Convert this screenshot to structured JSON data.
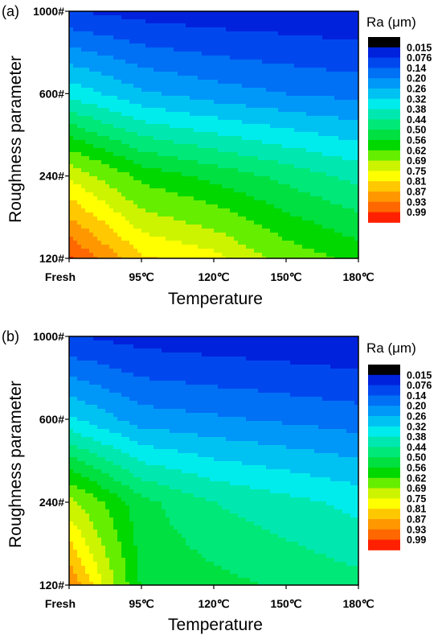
{
  "legend": {
    "title": "Ra (μm)",
    "levels": [
      "0.015",
      "0.076",
      "0.14",
      "0.20",
      "0.26",
      "0.32",
      "0.38",
      "0.44",
      "0.50",
      "0.56",
      "0.62",
      "0.69",
      "0.75",
      "0.81",
      "0.87",
      "0.93",
      "0.99"
    ],
    "colors": [
      "#000000",
      "#0022dd",
      "#0048ee",
      "#0070f5",
      "#0098f8",
      "#00c2f2",
      "#00ecec",
      "#00e8b0",
      "#00e878",
      "#00e040",
      "#00d800",
      "#66ee00",
      "#ccf400",
      "#ffff00",
      "#ffc800",
      "#ff9800",
      "#ff6800",
      "#ff2000"
    ]
  },
  "chart_data": [
    {
      "type": "heatmap",
      "panel_label": "(a)",
      "xlabel": "Temperature",
      "ylabel": "Roughness parameter",
      "x_ticks": [
        "Fresh",
        "95℃",
        "120℃",
        "150℃",
        "180℃"
      ],
      "y_ticks": [
        "120#",
        "240#",
        "600#",
        "1000#"
      ],
      "values_unit": "Ra (μm)",
      "grid": [
        [
          1.0,
          0.82,
          0.77,
          0.66,
          0.6
        ],
        [
          0.74,
          0.6,
          0.54,
          0.48,
          0.42
        ],
        [
          0.36,
          0.27,
          0.23,
          0.2,
          0.18
        ],
        [
          0.08,
          0.05,
          0.035,
          0.028,
          0.018
        ]
      ]
    },
    {
      "type": "heatmap",
      "panel_label": "(b)",
      "xlabel": "Temperature",
      "ylabel": "Roughness parameter",
      "x_ticks": [
        "Fresh",
        "95℃",
        "120℃",
        "150℃",
        "180℃"
      ],
      "y_ticks": [
        "120#",
        "240#",
        "600#",
        "1000#"
      ],
      "values_unit": "Ra (μm)",
      "grid": [
        [
          0.93,
          0.55,
          0.52,
          0.49,
          0.46
        ],
        [
          0.71,
          0.52,
          0.44,
          0.4,
          0.36
        ],
        [
          0.33,
          0.23,
          0.21,
          0.19,
          0.17
        ],
        [
          0.08,
          0.05,
          0.035,
          0.025,
          0.014
        ]
      ]
    }
  ]
}
